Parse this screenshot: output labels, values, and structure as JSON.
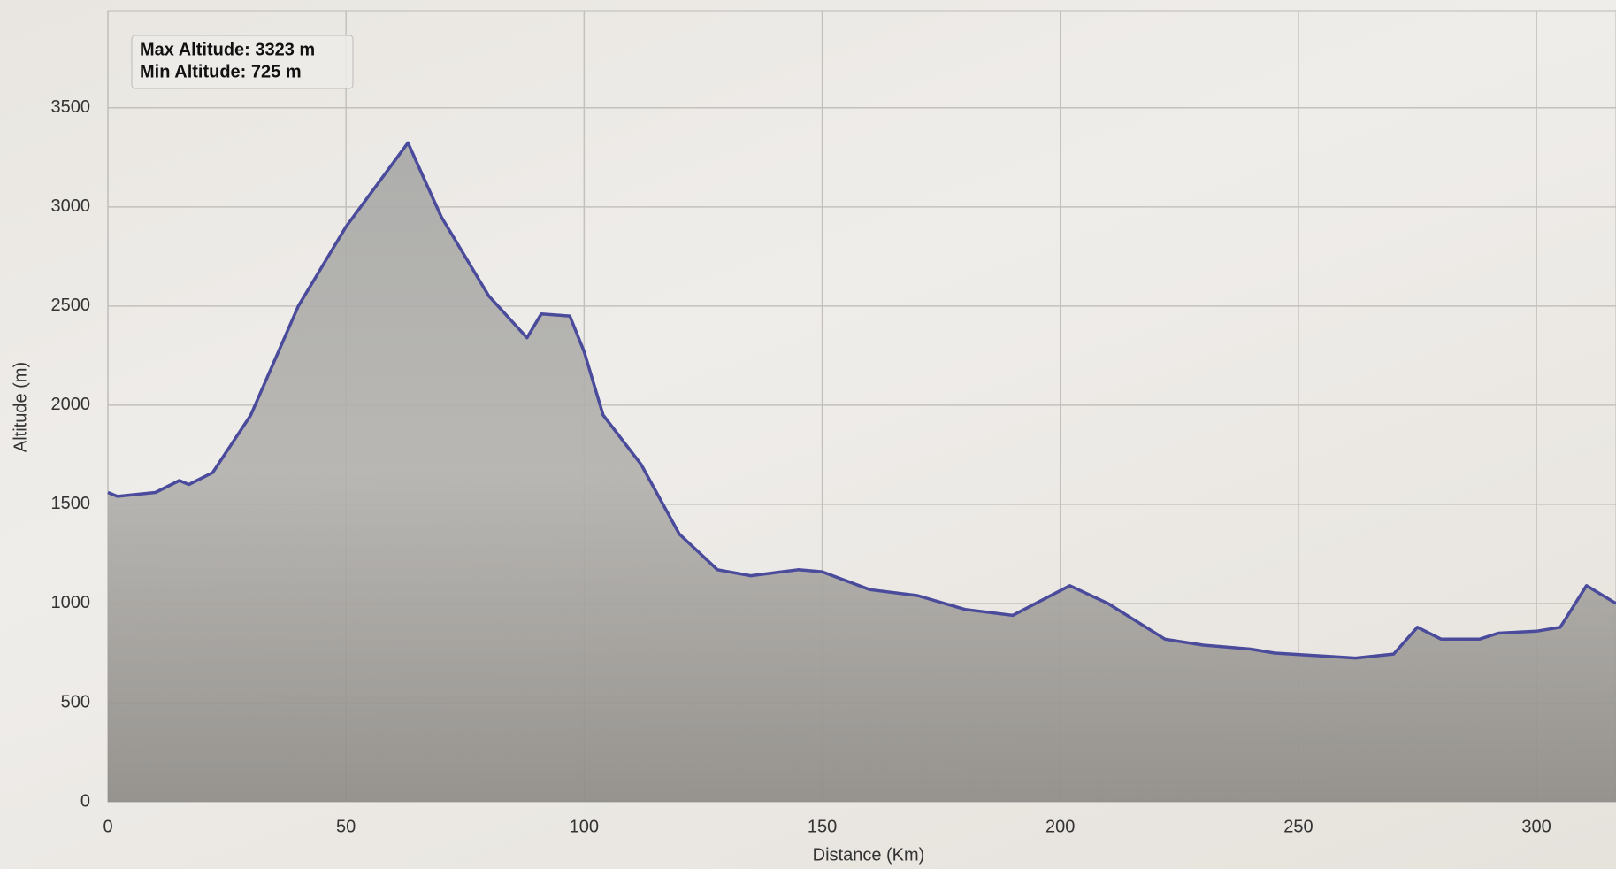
{
  "chart_data": {
    "type": "area",
    "x_label": "Distance (Km)",
    "y_label": "Altitude (m)",
    "annotations": [
      "Max Altitude: 3323 m",
      "Min Altitude: 725 m"
    ],
    "x": [
      0,
      2,
      10,
      15,
      17,
      22,
      30,
      40,
      50,
      63,
      70,
      80,
      88,
      91,
      97,
      100,
      104,
      112,
      120,
      128,
      135,
      145,
      150,
      160,
      170,
      180,
      190,
      202,
      210,
      222,
      230,
      240,
      245,
      262,
      270,
      275,
      280,
      288,
      292,
      300,
      305,
      310.5,
      316.7
    ],
    "values": [
      1560,
      1540,
      1560,
      1620,
      1600,
      1660,
      1950,
      2500,
      2900,
      3323,
      2950,
      2550,
      2340,
      2460,
      2450,
      2270,
      1950,
      1700,
      1350,
      1170,
      1140,
      1170,
      1160,
      1070,
      1040,
      970,
      940,
      1090,
      1000,
      820,
      790,
      770,
      750,
      725,
      745,
      880,
      820,
      820,
      850,
      860,
      880,
      1090,
      1000
    ],
    "color": "#4b4b9c",
    "xlim": [
      0,
      316.7
    ],
    "ylim": [
      0,
      3990
    ],
    "xticks": [
      0,
      50,
      100,
      150,
      200,
      250,
      300
    ],
    "yticks": [
      0,
      500,
      1000,
      1500,
      2000,
      2500,
      3000,
      3500
    ],
    "grid": true
  }
}
